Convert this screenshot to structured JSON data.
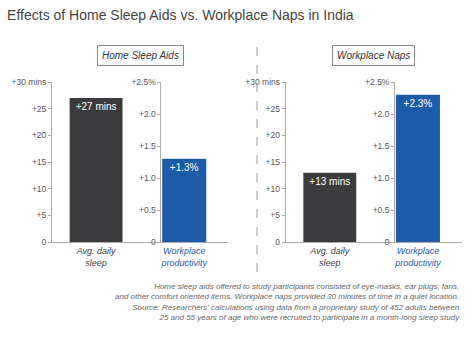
{
  "title": "Effects of Home Sleep Aids vs. Workplace Naps in India",
  "footnote": [
    "Home sleep aids offered to study participants consisted of eye-masks, ear plugs, fans,",
    "and other comfort oriented items. Workplace naps provided 30 minutes of time in a quiet location.",
    "Source: Researchers' calculations using data from a proprietary study of 452 adults between",
    "25 and 55 years of age who were recruited to participate in a month-long sleep study"
  ],
  "chart_data": [
    {
      "type": "bar",
      "title": "Home Sleep Aids",
      "categories": [
        "Avg. daily sleep",
        "Workplace productivity"
      ],
      "series": [
        {
          "values": [
            27,
            null
          ],
          "value_labels": [
            "+27 mins",
            null
          ],
          "color": "#3b3b3d"
        },
        {
          "values": [
            null,
            1.3
          ],
          "value_labels": [
            null,
            "+1.3%"
          ],
          "color": "#1d5ca8",
          "axis": "y2"
        }
      ],
      "ylim": [
        0,
        30
      ],
      "yticks": [
        0,
        {
          "value": 5,
          "label": "+5"
        },
        {
          "value": 10,
          "label": "+10"
        },
        {
          "value": 15,
          "label": "+15"
        },
        {
          "value": 20,
          "label": "+20"
        },
        {
          "value": 25,
          "label": "+25"
        },
        {
          "value": 30,
          "label": "+30 mins"
        }
      ],
      "y2lim": [
        0,
        2.5
      ],
      "y2ticks": [
        0,
        {
          "value": 0.5,
          "label": "+0.5"
        },
        {
          "value": 1,
          "label": "+1.0"
        },
        {
          "value": 1.5,
          "label": "+1.5"
        },
        {
          "value": 2,
          "label": "+2.0"
        },
        {
          "value": 2.5,
          "label": "+2.5%"
        }
      ],
      "data_labels": true,
      "grid": false
    },
    {
      "type": "bar",
      "title": "Workplace Naps",
      "categories": [
        "Avg. daily sleep",
        "Workplace productivity"
      ],
      "series": [
        {
          "values": [
            13,
            null
          ],
          "value_labels": [
            "+13 mins",
            null
          ],
          "color": "#3b3b3d"
        },
        {
          "values": [
            null,
            2.3
          ],
          "value_labels": [
            null,
            "+2.3%"
          ],
          "color": "#1d5ca8",
          "axis": "y2"
        }
      ],
      "ylim": [
        0,
        30
      ],
      "yticks": [
        0,
        {
          "value": 5,
          "label": "+5"
        },
        {
          "value": 10,
          "label": "+10"
        },
        {
          "value": 15,
          "label": "+15"
        },
        {
          "value": 20,
          "label": "+20"
        },
        {
          "value": 25,
          "label": "+25"
        },
        {
          "value": 30,
          "label": "+30 mins"
        }
      ],
      "y2lim": [
        0,
        2.5
      ],
      "y2ticks": [
        0,
        {
          "value": 0.5,
          "label": "+0.5"
        },
        {
          "value": 1,
          "label": "+1.0"
        },
        {
          "value": 1.5,
          "label": "+1.5"
        },
        {
          "value": 2,
          "label": "+2.0"
        },
        {
          "value": 2.5,
          "label": "+2.5%"
        }
      ],
      "data_labels": true,
      "grid": false
    }
  ]
}
